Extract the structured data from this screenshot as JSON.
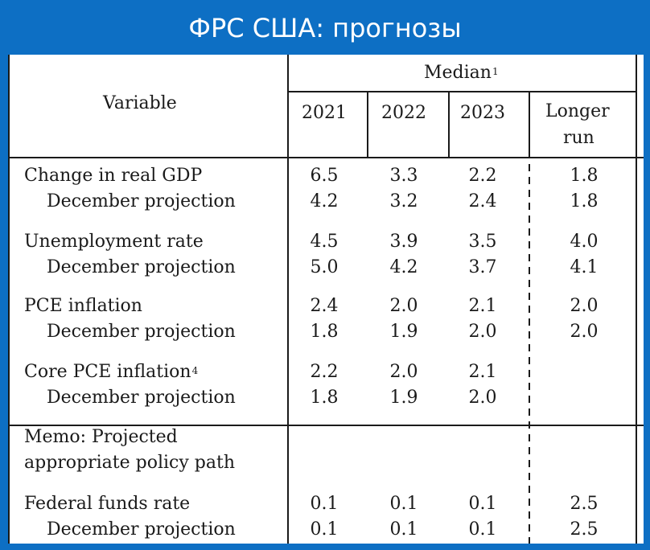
{
  "slide_title": "ФРС США: прогнозы",
  "table": {
    "header": {
      "variable": "Variable",
      "median": "Median",
      "median_note": "1",
      "years": [
        "2021",
        "2022",
        "2023"
      ],
      "longer_run_line1": "Longer",
      "longer_run_line2": "run"
    },
    "rows": [
      {
        "label": "Change in real GDP",
        "values": [
          "6.5",
          "3.3",
          "2.2",
          "1.8"
        ]
      },
      {
        "label": "December projection",
        "values": [
          "4.2",
          "3.2",
          "2.4",
          "1.8"
        ]
      },
      {
        "label": "Unemployment rate",
        "values": [
          "4.5",
          "3.9",
          "3.5",
          "4.0"
        ]
      },
      {
        "label": "December projection",
        "values": [
          "5.0",
          "4.2",
          "3.7",
          "4.1"
        ]
      },
      {
        "label": "PCE inflation",
        "values": [
          "2.4",
          "2.0",
          "2.1",
          "2.0"
        ]
      },
      {
        "label": "December projection",
        "values": [
          "1.8",
          "1.9",
          "2.0",
          "2.0"
        ]
      },
      {
        "label": "Core PCE inflation",
        "note": "4",
        "values": [
          "2.2",
          "2.0",
          "2.1",
          ""
        ]
      },
      {
        "label": "December projection",
        "values": [
          "1.8",
          "1.9",
          "2.0",
          ""
        ]
      }
    ],
    "memo_line1": "Memo: Projected",
    "memo_line2": "appropriate policy path",
    "fed_rows": [
      {
        "label": "Federal funds rate",
        "values": [
          "0.1",
          "0.1",
          "0.1",
          "2.5"
        ]
      },
      {
        "label": "December projection",
        "values": [
          "0.1",
          "0.1",
          "0.1",
          "2.5"
        ]
      }
    ]
  }
}
